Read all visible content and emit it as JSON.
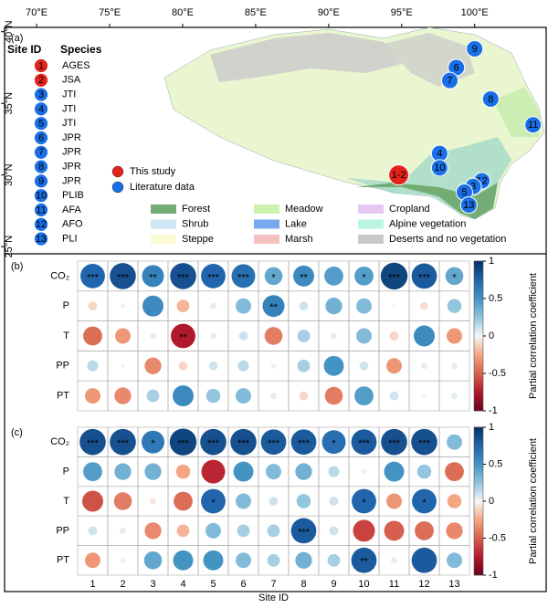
{
  "map": {
    "label": "(a)",
    "xlim": [
      67.8,
      104.9
    ],
    "ylim": [
      24.5,
      40.3
    ],
    "xticks": [
      {
        "value": 70,
        "label": "70°E"
      },
      {
        "value": 75,
        "label": "75°E"
      },
      {
        "value": 80,
        "label": "80°E"
      },
      {
        "value": 85,
        "label": "85°E"
      },
      {
        "value": 90,
        "label": "90°E"
      },
      {
        "value": 95,
        "label": "95°E"
      },
      {
        "value": 100,
        "label": "100°E"
      }
    ],
    "yticks": [
      {
        "value": 25,
        "label": "25°N"
      },
      {
        "value": 30,
        "label": "30°N"
      },
      {
        "value": 35,
        "label": "35°N"
      },
      {
        "value": 40,
        "label": "40°N"
      }
    ],
    "site_table": {
      "headers": [
        "Site ID",
        "Species"
      ],
      "rows": [
        {
          "id": "1",
          "species": "AGES",
          "color": "#e3231b"
        },
        {
          "id": "2",
          "species": "JSA",
          "color": "#e3231b"
        },
        {
          "id": "3",
          "species": "JTI",
          "color": "#1a6fe6"
        },
        {
          "id": "4",
          "species": "JTI",
          "color": "#1a6fe6"
        },
        {
          "id": "5",
          "species": "JTI",
          "color": "#1a6fe6"
        },
        {
          "id": "6",
          "species": "JPR",
          "color": "#1a6fe6"
        },
        {
          "id": "7",
          "species": "JPR",
          "color": "#1a6fe6"
        },
        {
          "id": "8",
          "species": "JPR",
          "color": "#1a6fe6"
        },
        {
          "id": "9",
          "species": "JPR",
          "color": "#1a6fe6"
        },
        {
          "id": "10",
          "species": "PLIB",
          "color": "#1a6fe6"
        },
        {
          "id": "11",
          "species": "AFA",
          "color": "#1a6fe6"
        },
        {
          "id": "12",
          "species": "AFO",
          "color": "#1a6fe6"
        },
        {
          "id": "13",
          "species": "PLI",
          "color": "#1a6fe6"
        }
      ]
    },
    "marker_legend": [
      {
        "label": "This study",
        "color": "#e3231b"
      },
      {
        "label": "Literature data",
        "color": "#1a6fe6"
      }
    ],
    "landcover_legend": [
      {
        "label": "Forest",
        "color": "#73ad73"
      },
      {
        "label": "Shrub",
        "color": "#cfe6f5"
      },
      {
        "label": "Steppe",
        "color": "#fbfbd3"
      },
      {
        "label": "Meadow",
        "color": "#cdf2b0"
      },
      {
        "label": "Lake",
        "color": "#78a8ee"
      },
      {
        "label": "Marsh",
        "color": "#f4c0c0"
      },
      {
        "label": "Cropland",
        "color": "#e6c8f2"
      },
      {
        "label": "Alpine vegetation",
        "color": "#b9f5e2"
      },
      {
        "label": "Deserts and no vegetation",
        "color": "#c8c8c8"
      }
    ],
    "sites": [
      {
        "label": "9",
        "lon": 100.0,
        "lat": 38.8,
        "color": "#1a6fe6"
      },
      {
        "label": "6",
        "lon": 98.75,
        "lat": 37.5,
        "color": "#1a6fe6"
      },
      {
        "label": "7",
        "lon": 98.3,
        "lat": 36.6,
        "color": "#1a6fe6"
      },
      {
        "label": "8",
        "lon": 101.1,
        "lat": 35.3,
        "color": "#1a6fe6"
      },
      {
        "label": "11",
        "lon": 104.0,
        "lat": 33.5,
        "color": "#1a6fe6"
      },
      {
        "label": "4",
        "lon": 97.6,
        "lat": 31.5,
        "color": "#1a6fe6"
      },
      {
        "label": "10",
        "lon": 97.6,
        "lat": 30.5,
        "color": "#1a6fe6"
      },
      {
        "label": "1-2",
        "lon": 94.8,
        "lat": 30.0,
        "color": "#e3231b"
      },
      {
        "label": "12",
        "lon": 100.5,
        "lat": 29.6,
        "color": "#1a6fe6"
      },
      {
        "label": "3",
        "lon": 99.9,
        "lat": 29.2,
        "color": "#1a6fe6"
      },
      {
        "label": "5",
        "lon": 99.3,
        "lat": 28.8,
        "color": "#1a6fe6"
      },
      {
        "label": "13",
        "lon": 99.6,
        "lat": 27.9,
        "color": "#1a6fe6"
      }
    ]
  },
  "chart_data": [
    {
      "type": "correlation",
      "label": "(b)",
      "y_categories": [
        "CO₂",
        "P",
        "T",
        "PP",
        "PT"
      ],
      "values": [
        [
          0.75,
          0.85,
          0.6,
          0.85,
          0.75,
          0.7,
          0.4,
          0.55,
          0.45,
          0.45,
          0.9,
          0.8,
          0.4
        ],
        [
          -0.1,
          0.03,
          0.55,
          -0.2,
          0.05,
          0.3,
          0.6,
          0.1,
          0.35,
          0.3,
          0.02,
          -0.08,
          0.25
        ],
        [
          -0.45,
          -0.3,
          0.05,
          -0.75,
          -0.05,
          0.1,
          -0.4,
          0.2,
          0.05,
          0.3,
          -0.1,
          0.55,
          -0.3
        ],
        [
          0.15,
          0.02,
          -0.35,
          -0.1,
          0.1,
          0.15,
          0.03,
          0.2,
          0.5,
          0.1,
          -0.3,
          0.05,
          0.05
        ],
        [
          -0.3,
          -0.35,
          0.2,
          0.55,
          0.25,
          0.3,
          0.05,
          -0.1,
          -0.4,
          0.45,
          0.1,
          0.02,
          0.05
        ]
      ],
      "significance": [
        [
          "***",
          "***",
          "**",
          "***",
          "***",
          "***",
          "*",
          "**",
          null,
          "*",
          "***",
          "***",
          "*"
        ],
        [
          null,
          null,
          null,
          null,
          null,
          null,
          "**",
          null,
          null,
          null,
          null,
          null,
          null
        ],
        [
          null,
          null,
          null,
          "**",
          null,
          null,
          null,
          null,
          null,
          null,
          null,
          null,
          null
        ],
        [
          null,
          null,
          null,
          null,
          null,
          null,
          null,
          null,
          null,
          null,
          null,
          null,
          null
        ],
        [
          null,
          null,
          null,
          null,
          null,
          null,
          null,
          null,
          null,
          null,
          null,
          null,
          null
        ]
      ],
      "clim": [
        -1,
        1
      ],
      "cticks": [
        1,
        0.5,
        0,
        -0.5,
        -1
      ],
      "colorbar_label": "Partial correlation coefficient",
      "colormap": [
        "#67001f",
        "#b2182b",
        "#d6604d",
        "#f4a582",
        "#f7f7f7",
        "#92c5de",
        "#4393c3",
        "#2166ac",
        "#053061"
      ]
    },
    {
      "type": "correlation",
      "label": "(c)",
      "y_categories": [
        "CO₂",
        "P",
        "T",
        "PP",
        "PT"
      ],
      "x_categories": [
        "1",
        "2",
        "3",
        "4",
        "5",
        "6",
        "7",
        "8",
        "9",
        "10",
        "11",
        "12",
        "13"
      ],
      "xlabel": "Site ID",
      "values": [
        [
          0.85,
          0.85,
          0.65,
          0.9,
          0.85,
          0.85,
          0.8,
          0.8,
          0.7,
          0.8,
          0.85,
          0.85,
          0.3
        ],
        [
          0.45,
          0.35,
          0.35,
          -0.25,
          -0.7,
          0.5,
          0.3,
          0.35,
          0.15,
          0.03,
          0.5,
          0.25,
          -0.45
        ],
        [
          -0.55,
          -0.4,
          -0.05,
          -0.45,
          0.75,
          0.3,
          0.1,
          0.25,
          0.1,
          0.75,
          -0.3,
          0.75,
          -0.25
        ],
        [
          0.1,
          0.05,
          -0.35,
          -0.2,
          0.3,
          0.2,
          0.2,
          0.8,
          0.1,
          -0.6,
          -0.5,
          -0.45,
          -0.35
        ],
        [
          -0.3,
          0.03,
          0.4,
          0.5,
          0.5,
          0.3,
          0.2,
          0.35,
          0.2,
          0.8,
          0.05,
          0.8,
          0.3
        ]
      ],
      "significance": [
        [
          "***",
          "***",
          "*",
          "***",
          "***",
          "***",
          "***",
          "***",
          "*",
          "***",
          "***",
          "***",
          null
        ],
        [
          null,
          null,
          null,
          null,
          null,
          null,
          null,
          null,
          null,
          null,
          null,
          null,
          null
        ],
        [
          null,
          null,
          null,
          null,
          "*",
          null,
          null,
          null,
          null,
          "*",
          null,
          "*",
          null
        ],
        [
          null,
          null,
          null,
          null,
          null,
          null,
          null,
          "***",
          null,
          null,
          null,
          null,
          null
        ],
        [
          null,
          null,
          null,
          null,
          null,
          null,
          null,
          null,
          null,
          "**",
          null,
          null,
          null
        ]
      ],
      "clim": [
        -1,
        1
      ],
      "cticks": [
        1,
        0.5,
        0,
        -0.5,
        -1
      ],
      "colorbar_label": "Partial correlation coefficient",
      "colormap": [
        "#67001f",
        "#b2182b",
        "#d6604d",
        "#f4a582",
        "#f7f7f7",
        "#92c5de",
        "#4393c3",
        "#2166ac",
        "#053061"
      ]
    }
  ]
}
